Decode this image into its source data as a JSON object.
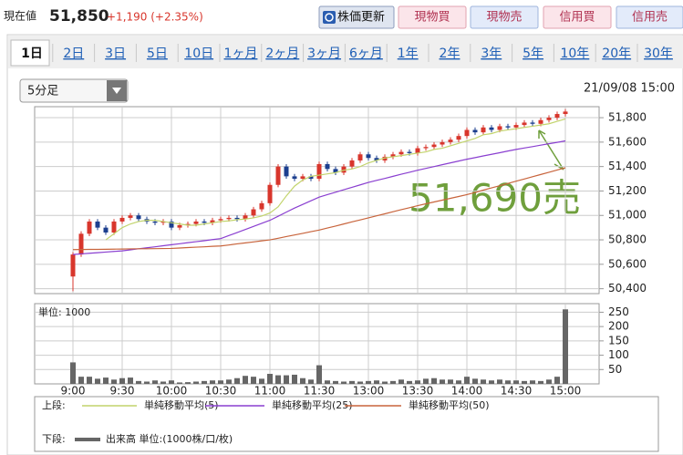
{
  "header": {
    "label": "現在値",
    "price": "51,850",
    "change": "+1,190 (+2.35%)",
    "buttons": [
      "株価更新",
      "現物買",
      "現物売",
      "信用買",
      "信用売"
    ]
  },
  "tabs": [
    "1日",
    "2日",
    "3日",
    "5日",
    "10日",
    "1ヶ月",
    "2ヶ月",
    "3ヶ月",
    "6ヶ月",
    "1年",
    "2年",
    "3年",
    "5年",
    "10年",
    "20年",
    "30年"
  ],
  "period_select": "5分足",
  "timestamp": "21/09/08 15:00",
  "legend": {
    "upper": "上段:",
    "lower": "下段:"
  },
  "chart_data": [
    {
      "type": "candlestick",
      "annotation": "51,690売",
      "up_color": "#d8362c",
      "down_color": "#1c3f8f",
      "grid": true,
      "ylim": [
        50360,
        51890
      ],
      "yticks": [
        {
          "value": 50400,
          "label": "50,400"
        },
        {
          "value": 50600,
          "label": "50,600"
        },
        {
          "value": 50800,
          "label": "50,800"
        },
        {
          "value": 51000,
          "label": "51,000"
        },
        {
          "value": 51200,
          "label": "51,200"
        },
        {
          "value": 51400,
          "label": "51,400"
        },
        {
          "value": 51600,
          "label": "51,600"
        },
        {
          "value": 51800,
          "label": "51,800"
        }
      ],
      "open": [
        50500,
        50680,
        50850,
        50950,
        50900,
        50860,
        50950,
        50980,
        51000,
        50970,
        50950,
        50940,
        50950,
        50900,
        50920,
        50930,
        50950,
        50940,
        50960,
        50970,
        50980,
        50970,
        51000,
        51050,
        51100,
        51250,
        51400,
        51320,
        51300,
        51320,
        51300,
        51420,
        51380,
        51350,
        51400,
        51450,
        51500,
        51470,
        51450,
        51480,
        51500,
        51520,
        51510,
        51550,
        51560,
        51580,
        51600,
        51620,
        51650,
        51700,
        51680,
        51720,
        51700,
        51730,
        51720,
        51740,
        51760,
        51750,
        51780,
        51800,
        51830
      ],
      "high": [
        50700,
        50870,
        50970,
        50970,
        50920,
        50970,
        51000,
        51020,
        51020,
        50990,
        50970,
        50970,
        50970,
        50940,
        50950,
        50970,
        50970,
        50980,
        50990,
        51000,
        51000,
        51020,
        51070,
        51120,
        51270,
        51420,
        51420,
        51340,
        51340,
        51340,
        51440,
        51440,
        51400,
        51420,
        51470,
        51520,
        51520,
        51490,
        51500,
        51520,
        51540,
        51540,
        51570,
        51580,
        51600,
        51620,
        51640,
        51670,
        51720,
        51720,
        51740,
        51740,
        51750,
        51750,
        51760,
        51780,
        51780,
        51800,
        51820,
        51850,
        51870
      ],
      "low": [
        50380,
        50660,
        50830,
        50880,
        50840,
        50840,
        50930,
        50960,
        50950,
        50930,
        50920,
        50920,
        50880,
        50880,
        50900,
        50910,
        50920,
        50920,
        50940,
        50950,
        50950,
        50950,
        50980,
        51030,
        51080,
        51230,
        51300,
        51280,
        51280,
        51280,
        51280,
        51360,
        51330,
        51330,
        51380,
        51430,
        51450,
        51430,
        51430,
        51460,
        51480,
        51490,
        51490,
        51530,
        51540,
        51560,
        51580,
        51600,
        51630,
        51660,
        51660,
        51680,
        51680,
        51700,
        51700,
        51720,
        51730,
        51730,
        51760,
        51780,
        51810
      ],
      "close": [
        50680,
        50850,
        50950,
        50900,
        50860,
        50950,
        50980,
        51000,
        50970,
        50950,
        50940,
        50950,
        50900,
        50920,
        50930,
        50950,
        50940,
        50960,
        50970,
        50980,
        50970,
        51000,
        51050,
        51100,
        51250,
        51400,
        51320,
        51300,
        51320,
        51300,
        51420,
        51380,
        51350,
        51400,
        51450,
        51500,
        51470,
        51450,
        51480,
        51500,
        51520,
        51510,
        51550,
        51560,
        51580,
        51600,
        51620,
        51650,
        51700,
        51680,
        51720,
        51700,
        51730,
        51720,
        51740,
        51760,
        51750,
        51780,
        51800,
        51830,
        51850
      ],
      "series": [
        {
          "name": "単純移動平均(5)",
          "color": "#c2d46c",
          "values": [
            null,
            null,
            null,
            null,
            50800,
            50850,
            50900,
            50930,
            50950,
            50960,
            50960,
            50950,
            50940,
            50930,
            50920,
            50920,
            50930,
            50940,
            50950,
            50955,
            50965,
            50970,
            50980,
            50995,
            51020,
            51070,
            51160,
            51240,
            51290,
            51320,
            51330,
            51340,
            51350,
            51370,
            51380,
            51400,
            51430,
            51450,
            51470,
            51480,
            51490,
            51500,
            51510,
            51520,
            51540,
            51550,
            51570,
            51590,
            51610,
            51630,
            51660,
            51670,
            51690,
            51700,
            51710,
            51720,
            51730,
            51740,
            51750,
            51770,
            51790
          ]
        },
        {
          "name": "単純移動平均(25)",
          "color": "#8a3fd0",
          "values": [
            50680,
            50685,
            50690,
            50695,
            50700,
            50705,
            50710,
            50718,
            50727,
            50735,
            50743,
            50752,
            50760,
            50768,
            50777,
            50785,
            50793,
            50802,
            50810,
            50835,
            50860,
            50885,
            50910,
            50935,
            50960,
            50993,
            51027,
            51060,
            51090,
            51120,
            51150,
            51170,
            51190,
            51210,
            51230,
            51250,
            51270,
            51287,
            51303,
            51320,
            51337,
            51353,
            51370,
            51385,
            51400,
            51415,
            51430,
            51445,
            51460,
            51473,
            51487,
            51500,
            51513,
            51527,
            51540,
            51552,
            51563,
            51575,
            51587,
            51598,
            51610
          ]
        },
        {
          "name": "単純移動平均(50)",
          "color": "#c8643c",
          "values": [
            50720,
            50721,
            50722,
            50722,
            50723,
            50724,
            50725,
            50726,
            50727,
            50727,
            50728,
            50729,
            50730,
            50733,
            50737,
            50740,
            50743,
            50747,
            50750,
            50758,
            50767,
            50775,
            50783,
            50792,
            50800,
            50813,
            50827,
            50840,
            50853,
            50867,
            50880,
            50897,
            50913,
            50930,
            50947,
            50963,
            50980,
            50997,
            51013,
            51030,
            51047,
            51063,
            51080,
            51095,
            51110,
            51125,
            51140,
            51155,
            51170,
            51188,
            51207,
            51225,
            51243,
            51262,
            51280,
            51298,
            51317,
            51335,
            51353,
            51372,
            51390
          ]
        }
      ]
    },
    {
      "type": "bar",
      "unit_label": "単位: 1000",
      "grid": true,
      "ylim": [
        0,
        280
      ],
      "yticks": [
        50,
        100,
        150,
        200,
        250
      ],
      "categories": [
        "9:00",
        null,
        null,
        null,
        null,
        null,
        "9:30",
        null,
        null,
        null,
        null,
        null,
        "10:00",
        null,
        null,
        null,
        null,
        null,
        "10:30",
        null,
        null,
        null,
        null,
        null,
        "11:00",
        null,
        null,
        null,
        null,
        null,
        "11:30",
        null,
        null,
        null,
        null,
        null,
        "13:00",
        null,
        null,
        null,
        null,
        null,
        "13:30",
        null,
        null,
        null,
        null,
        null,
        "14:00",
        null,
        null,
        null,
        null,
        null,
        "14:30",
        null,
        null,
        null,
        null,
        null,
        "15:00"
      ],
      "series": [
        {
          "name": "出来高 単位:(1000株/口/枚)",
          "color": "#666666",
          "values": [
            75,
            25,
            25,
            18,
            22,
            15,
            20,
            22,
            10,
            8,
            12,
            8,
            12,
            5,
            6,
            8,
            10,
            12,
            12,
            15,
            20,
            28,
            25,
            18,
            35,
            30,
            30,
            32,
            20,
            15,
            65,
            12,
            10,
            8,
            10,
            8,
            10,
            12,
            8,
            10,
            15,
            10,
            12,
            18,
            20,
            15,
            15,
            12,
            25,
            18,
            15,
            12,
            15,
            12,
            12,
            10,
            12,
            10,
            15,
            25,
            260
          ]
        }
      ]
    }
  ]
}
